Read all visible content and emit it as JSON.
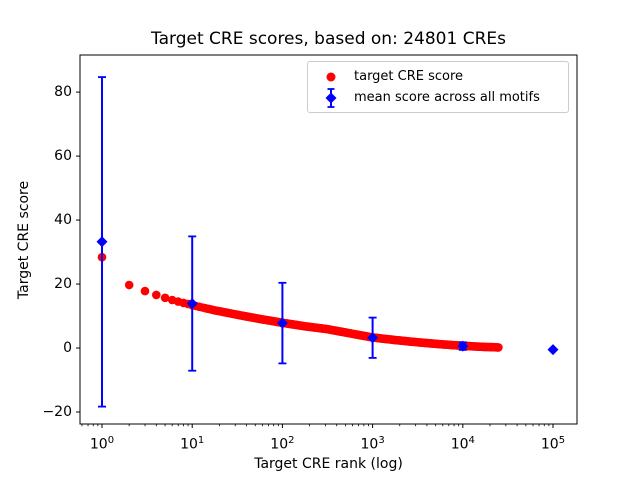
{
  "chart_data": {
    "type": "scatter",
    "title": "Target CRE scores, based on: 24801 CREs",
    "xlabel": "Target CRE rank (log)",
    "ylabel": "Target CRE score",
    "x_scale": "log",
    "grid": false,
    "n_cres": 24801,
    "xlim_log10": [
      -0.244,
      5.266
    ],
    "ylim": [
      -23.75,
      91.6
    ],
    "x_ticks": [
      1,
      10,
      100,
      1000,
      10000,
      100000
    ],
    "x_tick_exponents": [
      "0",
      "1",
      "2",
      "3",
      "4",
      "5"
    ],
    "y_ticks": [
      -20,
      0,
      20,
      40,
      60,
      80
    ],
    "y_tick_labels": [
      "−20",
      "0",
      "20",
      "40",
      "60",
      "80"
    ],
    "legend_position": "upper right",
    "colors": {
      "red": "#ff0000",
      "blue": "#0000ff",
      "axis": "#000000",
      "legend_border": "#cccccc"
    },
    "series": [
      {
        "name": "target CRE score",
        "marker": "circle",
        "color": "#ff0000",
        "rank_range": [
          1,
          24801
        ],
        "curve_log10rank_vs_score": [
          [
            0,
            28.4
          ],
          [
            0.301,
            19.7
          ],
          [
            0.477,
            17.8
          ],
          [
            0.602,
            16.6
          ],
          [
            0.699,
            15.7
          ],
          [
            0.778,
            15.0
          ],
          [
            0.845,
            14.5
          ],
          [
            0.903,
            14.1
          ],
          [
            0.954,
            13.8
          ],
          [
            1.0,
            13.4
          ],
          [
            1.25,
            11.8
          ],
          [
            1.5,
            10.4
          ],
          [
            1.75,
            9.1
          ],
          [
            2.0,
            7.9
          ],
          [
            2.25,
            6.8
          ],
          [
            2.5,
            5.9
          ],
          [
            2.75,
            4.6
          ],
          [
            3.0,
            3.3
          ],
          [
            3.25,
            2.5
          ],
          [
            3.5,
            1.8
          ],
          [
            3.75,
            1.2
          ],
          [
            4.0,
            0.7
          ],
          [
            4.2,
            0.4
          ],
          [
            4.3945,
            0.2
          ]
        ]
      },
      {
        "name": "mean score across all motifs",
        "marker": "diamond",
        "color": "#0000ff",
        "points": [
          {
            "rank": 1,
            "mean": 33.2,
            "err": 51.5
          },
          {
            "rank": 10,
            "mean": 13.9,
            "err": 21.0
          },
          {
            "rank": 100,
            "mean": 7.8,
            "err": 12.6
          },
          {
            "rank": 1000,
            "mean": 3.2,
            "err": 6.3
          },
          {
            "rank": 10000,
            "mean": 0.6,
            "err": 1.2
          },
          {
            "rank": 100000,
            "mean": -0.5,
            "err": 0.15
          }
        ]
      }
    ]
  }
}
